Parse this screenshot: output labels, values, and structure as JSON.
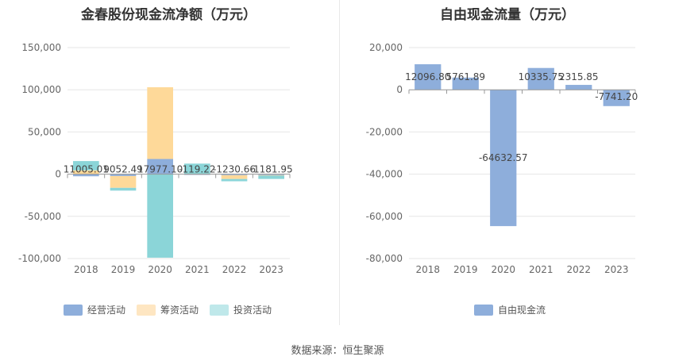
{
  "source_label": "数据来源：恒生聚源",
  "chart_data": [
    {
      "type": "bar",
      "stacked": true,
      "title": "金春股份现金流净额（万元）",
      "categories": [
        "2018",
        "2019",
        "2020",
        "2021",
        "2022",
        "2023"
      ],
      "ylim": [
        -100000,
        150000
      ],
      "yticks": [
        150000,
        100000,
        50000,
        0,
        -50000,
        -100000
      ],
      "ytick_labels": [
        "150,000",
        "100,000",
        "50,000",
        "0",
        "-50,000",
        "-100,000"
      ],
      "legend_position": "bottom",
      "series": [
        {
          "name": "经营活动",
          "color": "#8eaedb",
          "values": [
            -2500,
            -2200,
            17977.1,
            -119.22,
            -1230.66,
            -1181.95
          ]
        },
        {
          "name": "筹资活动",
          "color": "#fed999",
          "values": [
            4500,
            -14000,
            85000,
            500,
            -4500,
            -500
          ]
        },
        {
          "name": "投资活动",
          "color": "#8bd5d8",
          "values": [
            11005.01,
            -3300,
            -99000,
            12000,
            -2700,
            -4000
          ]
        }
      ],
      "data_labels": [
        {
          "category": "2018",
          "text": "11005.01"
        },
        {
          "category": "2019",
          "text": "9052.49"
        },
        {
          "category": "2020",
          "text": "17977.10"
        },
        {
          "category": "2021",
          "text": "-119.22"
        },
        {
          "category": "2022",
          "text": "-1230.66"
        },
        {
          "category": "2023",
          "text": "-1181.95"
        }
      ]
    },
    {
      "type": "bar",
      "title": "自由现金流量（万元）",
      "categories": [
        "2018",
        "2019",
        "2020",
        "2021",
        "2022",
        "2023"
      ],
      "ylim": [
        -80000,
        20000
      ],
      "yticks": [
        20000,
        0,
        -20000,
        -40000,
        -60000,
        -80000
      ],
      "ytick_labels": [
        "20,000",
        "0",
        "-20,000",
        "-40,000",
        "-60,000",
        "-80,000"
      ],
      "legend_position": "bottom",
      "series": [
        {
          "name": "自由现金流",
          "color": "#8eaedb",
          "values": [
            12096.8,
            5761.89,
            -64632.57,
            10335.75,
            2315.85,
            -7741.2
          ]
        }
      ],
      "data_labels": [
        {
          "category": "2018",
          "text": "12096.80"
        },
        {
          "category": "2019",
          "text": "5761.89"
        },
        {
          "category": "2020",
          "text": "-64632.57"
        },
        {
          "category": "2021",
          "text": "10335.75"
        },
        {
          "category": "2022",
          "text": "2315.85"
        },
        {
          "category": "2023",
          "text": "-7741.20"
        }
      ]
    }
  ]
}
